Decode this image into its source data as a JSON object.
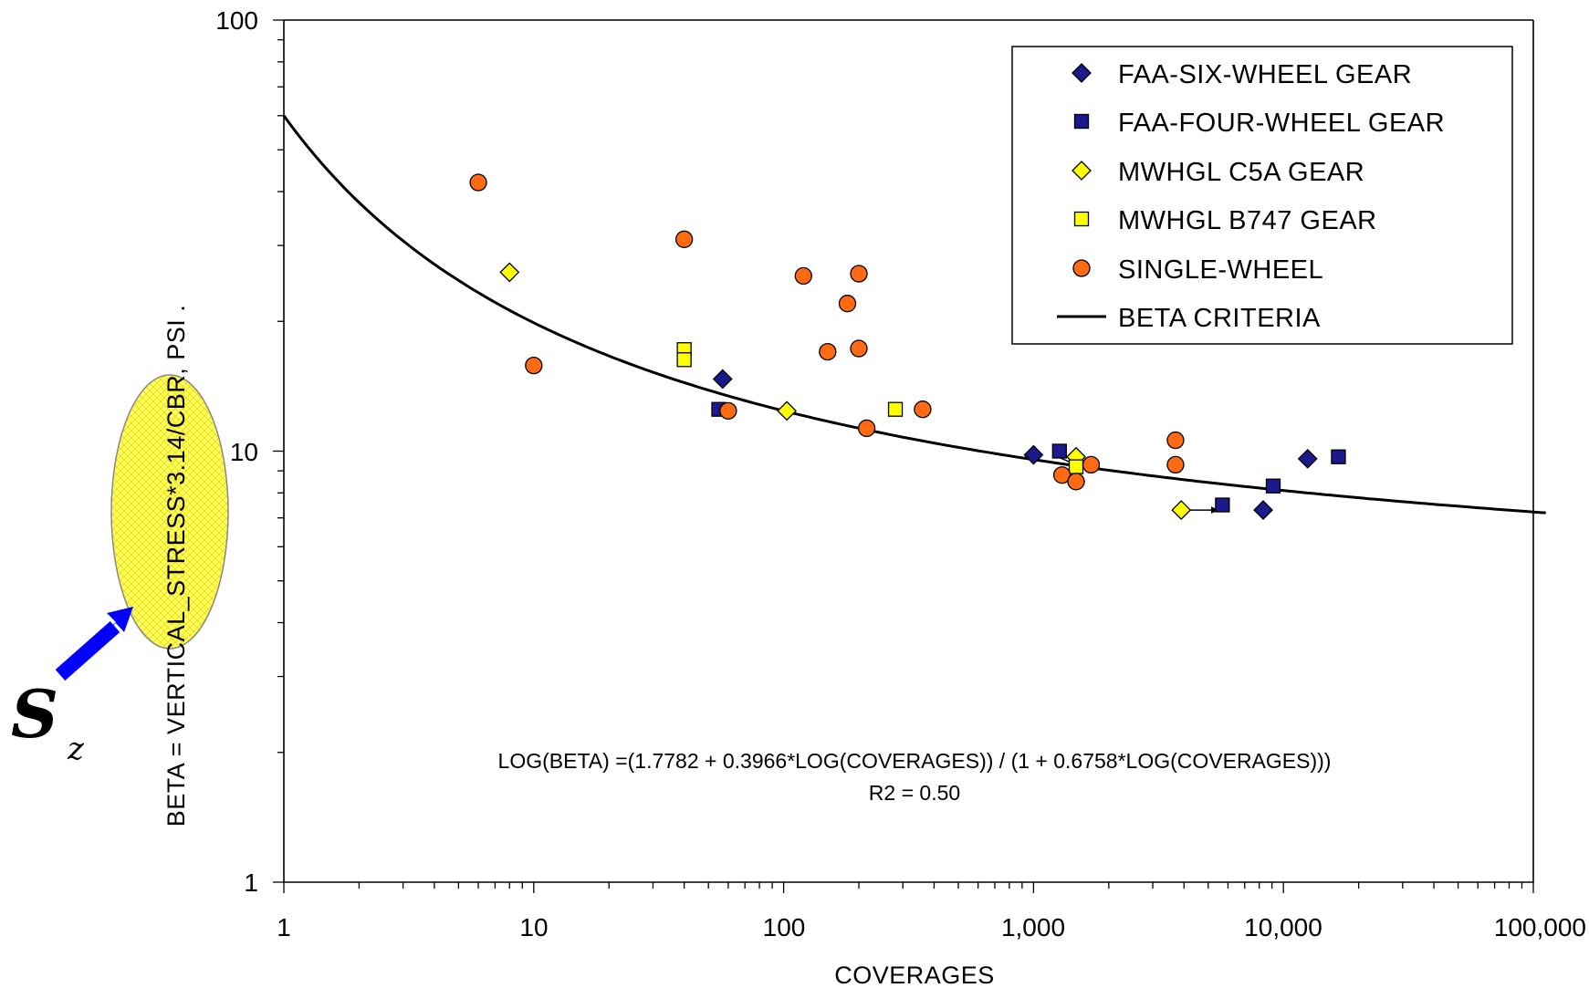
{
  "chart_data": {
    "type": "scatter",
    "x_scale": "log",
    "y_scale": "log",
    "xlim": [
      1,
      100000
    ],
    "ylim": [
      1,
      100
    ],
    "xlabel": "COVERAGES",
    "ylabel": "BETA = VERTICAL_STRESS*3.14/CBR, PSI  .",
    "x_ticks": [
      "1",
      "10",
      "100",
      "1,000",
      "10,000",
      "100,000"
    ],
    "y_ticks": [
      "1",
      "10",
      "100"
    ],
    "grid": false,
    "legend_position": "top-right",
    "series": [
      {
        "name": "FAA-SIX-WHEEL GEAR",
        "marker": "diamond",
        "color": "#1a1a8c",
        "points": [
          [
            57,
            14.7
          ],
          [
            1000,
            9.8
          ],
          [
            12500,
            9.6
          ],
          [
            8300,
            7.3
          ]
        ]
      },
      {
        "name": "FAA-FOUR-WHEEL GEAR",
        "marker": "square",
        "color": "#1a1a8c",
        "points": [
          [
            55,
            12.5
          ],
          [
            1270,
            10.0
          ],
          [
            16600,
            9.7
          ],
          [
            9100,
            8.3
          ],
          [
            5700,
            7.5
          ]
        ]
      },
      {
        "name": "MWHGL C5A GEAR",
        "marker": "diamond",
        "color": "#ffff00",
        "points": [
          [
            8,
            26
          ],
          [
            103,
            12.4
          ],
          [
            1480,
            9.7
          ],
          [
            3900,
            7.3
          ]
        ]
      },
      {
        "name": "MWHGL B747 GEAR",
        "marker": "square",
        "color": "#ffff00",
        "points": [
          [
            40,
            17.2
          ],
          [
            40,
            16.3
          ],
          [
            280,
            12.5
          ],
          [
            1480,
            9.2
          ]
        ]
      },
      {
        "name": "SINGLE-WHEEL",
        "marker": "circle",
        "color": "#ff6a13",
        "points": [
          [
            6,
            42
          ],
          [
            40,
            31
          ],
          [
            10,
            15.8
          ],
          [
            60,
            12.4
          ],
          [
            120,
            25.5
          ],
          [
            200,
            25.8
          ],
          [
            180,
            22
          ],
          [
            150,
            17
          ],
          [
            200,
            17.3
          ],
          [
            215,
            11.3
          ],
          [
            360,
            12.5
          ],
          [
            1300,
            8.8
          ],
          [
            1480,
            8.5
          ],
          [
            1700,
            9.3
          ],
          [
            3700,
            10.6
          ],
          [
            3700,
            9.3
          ]
        ]
      },
      {
        "name": "BETA CRITERIA",
        "marker": "line",
        "color": "#000000"
      }
    ],
    "arrows": [
      [
        [
          1200,
          9.8
        ],
        [
          1480,
          9.3
        ]
      ],
      [
        [
          3900,
          7.3
        ],
        [
          5500,
          7.3
        ]
      ]
    ],
    "equation": "LOG(BETA) =(1.7782 + 0.3966*LOG(COVERAGES)) / (1 + 0.6758*LOG(COVERAGES)))",
    "r2": "R2 = 0.50"
  },
  "annotation": {
    "symbol": "S",
    "subscript": "z",
    "highlight_color": "#ffff66",
    "arrow_color": "#0000ff"
  }
}
